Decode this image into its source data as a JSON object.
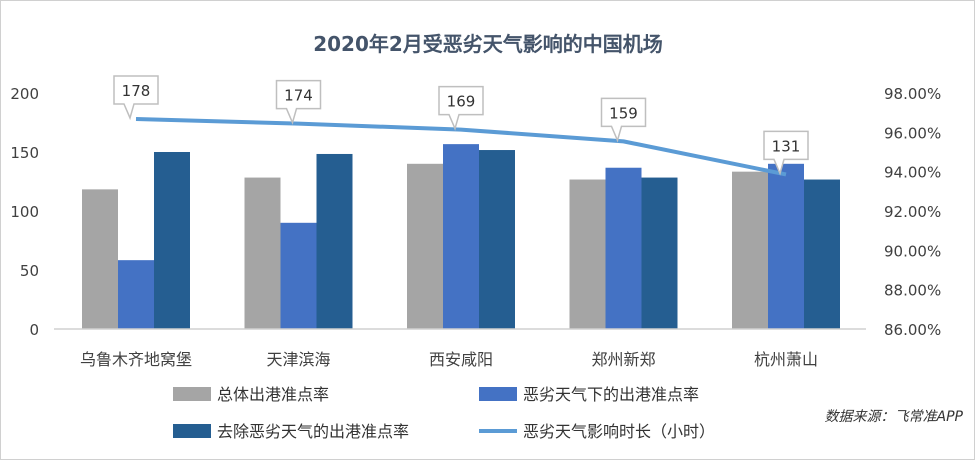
{
  "chart_data": {
    "type": "bar",
    "title": "2020年2月受恶劣天气影响的中国机场",
    "categories": [
      "乌鲁木齐地窝堡",
      "天津滨海",
      "西安咸阳",
      "郑州新郑",
      "杭州萧山"
    ],
    "y_left": {
      "ylim": [
        0,
        200
      ],
      "ticks": [
        "0",
        "50",
        "100",
        "150",
        "200"
      ]
    },
    "y_right": {
      "ylim": [
        86,
        98
      ],
      "ticks": [
        "86.00%",
        "88.00%",
        "90.00%",
        "92.00%",
        "94.00%",
        "96.00%",
        "98.00%"
      ]
    },
    "series": [
      {
        "name": "总体出港准点率",
        "type": "bar",
        "axis": "right",
        "color": "#a5a5a5",
        "values": [
          93.1,
          93.7,
          94.4,
          93.6,
          94.0
        ]
      },
      {
        "name": "恶劣天气下的出港准点率",
        "type": "bar",
        "axis": "right",
        "color": "#4472c4",
        "values": [
          89.5,
          91.4,
          95.4,
          94.2,
          94.4
        ]
      },
      {
        "name": "去除恶劣天气的出港准点率",
        "type": "bar",
        "axis": "right",
        "color": "#255e91",
        "values": [
          95.0,
          94.9,
          95.1,
          93.7,
          93.6
        ]
      },
      {
        "name": "恶劣天气影响时长（小时）",
        "type": "line",
        "axis": "left",
        "color": "#5b9bd5",
        "values": [
          178,
          174,
          169,
          159,
          131
        ],
        "labels": [
          "178",
          "174",
          "169",
          "159",
          "131"
        ]
      }
    ],
    "grid": false,
    "legend": "bottom"
  },
  "source": "数据来源：飞常准APP"
}
